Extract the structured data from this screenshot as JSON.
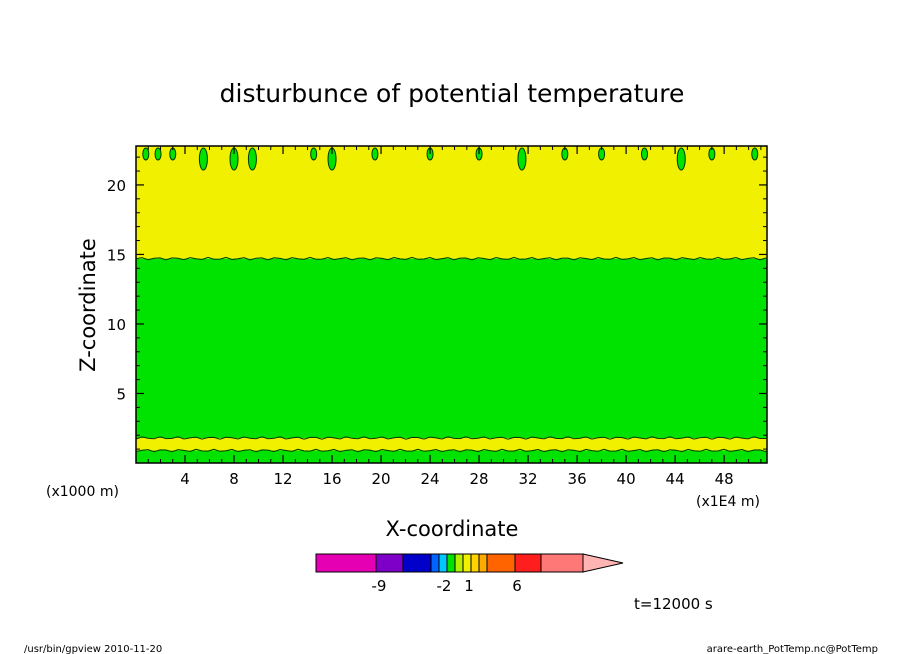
{
  "chart_data": {
    "type": "heatmap",
    "title": "disturbunce of potential temperature",
    "xlabel": "X-coordinate",
    "ylabel": "Z-coordinate",
    "x_unit_left": "(x1000 m)",
    "x_unit_right": "(x1E4 m)",
    "xlim": [
      0,
      51.5
    ],
    "ylim": [
      0,
      22.8
    ],
    "x_ticks": [
      4,
      8,
      12,
      16,
      20,
      24,
      28,
      32,
      36,
      40,
      44,
      48
    ],
    "x_tick_labels": [
      "4",
      "8",
      "12",
      "16",
      "20",
      "24",
      "28",
      "32",
      "36",
      "40",
      "44",
      "48"
    ],
    "y_ticks": [
      5,
      10,
      15,
      20
    ],
    "y_tick_labels": [
      "5",
      "10",
      "15",
      "20"
    ],
    "bands": [
      {
        "name": "lower green layer",
        "z_from": 0.0,
        "z_to": 0.9,
        "color": "#00e200"
      },
      {
        "name": "lower yellow layer",
        "z_from": 0.9,
        "z_to": 1.8,
        "color": "#f0f000"
      },
      {
        "name": "main green layer",
        "z_from": 1.8,
        "z_to": 14.7,
        "color": "#00e200"
      },
      {
        "name": "upper yellow layer",
        "z_from": 14.7,
        "z_to": 22.8,
        "color": "#f0f000"
      }
    ],
    "top_blobs_x": [
      0.8,
      1.8,
      3.0,
      5.5,
      8.0,
      9.5,
      14.5,
      16.0,
      19.5,
      24.0,
      28.0,
      31.5,
      35.0,
      38.0,
      41.5,
      44.5,
      47.0,
      50.5
    ],
    "colorbar": {
      "colors": [
        "#e600b4",
        "#7e00c8",
        "#0000c8",
        "#0064ff",
        "#00c8ff",
        "#00e200",
        "#b4f000",
        "#f0f000",
        "#ffd200",
        "#ffaa00",
        "#ff6400",
        "#ff1e1e",
        "#ff7878",
        "#ffb4b4"
      ],
      "tick_labels": [
        "-9",
        "-2",
        "1",
        "6"
      ]
    },
    "time_label": "t=12000 s"
  },
  "footer": {
    "left": "/usr/bin/gpview   2010-11-20",
    "right": "arare-earth_PotTemp.nc@PotTemp"
  }
}
